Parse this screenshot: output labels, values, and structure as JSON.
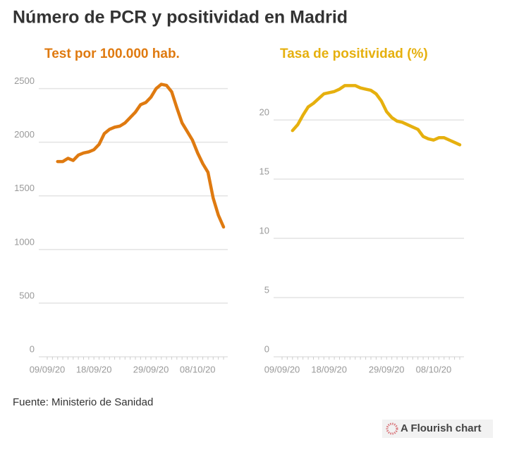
{
  "title": "Número de PCR y positividad en Madrid",
  "source": "Fuente: Ministerio de Sanidad",
  "credit": "A Flourish chart",
  "chart_data": [
    {
      "type": "line",
      "title": "Test por 100.000 hab.",
      "color": "#df7a10",
      "x": [
        "09/09/20",
        "10/09/20",
        "11/09/20",
        "12/09/20",
        "13/09/20",
        "14/09/20",
        "15/09/20",
        "16/09/20",
        "17/09/20",
        "18/09/20",
        "19/09/20",
        "20/09/20",
        "21/09/20",
        "22/09/20",
        "23/09/20",
        "24/09/20",
        "25/09/20",
        "26/09/20",
        "27/09/20",
        "28/09/20",
        "29/09/20",
        "30/09/20",
        "01/10/20",
        "02/10/20",
        "03/10/20",
        "04/10/20",
        "05/10/20",
        "06/10/20",
        "07/10/20",
        "08/10/20",
        "09/10/20",
        "10/10/20",
        "11/10/20",
        "12/10/20",
        "13/10/20"
      ],
      "values": [
        null,
        null,
        1820,
        1820,
        1850,
        1830,
        1880,
        1900,
        1910,
        1930,
        1980,
        2080,
        2120,
        2140,
        2150,
        2180,
        2230,
        2280,
        2350,
        2370,
        2420,
        2500,
        2540,
        2530,
        2470,
        2320,
        2180,
        2100,
        2020,
        1900,
        1800,
        1720,
        1480,
        1320,
        1210
      ],
      "xticks": [
        "09/09/20",
        "18/09/20",
        "29/09/20",
        "08/10/20"
      ],
      "ylim": [
        0,
        2550
      ],
      "yticks": [
        0,
        500,
        1000,
        1500,
        2000,
        2500
      ],
      "grid": true
    },
    {
      "type": "line",
      "title": "Tasa de positividad (%)",
      "color": "#e6b00e",
      "x": [
        "09/09/20",
        "10/09/20",
        "11/09/20",
        "12/09/20",
        "13/09/20",
        "14/09/20",
        "15/09/20",
        "16/09/20",
        "17/09/20",
        "18/09/20",
        "19/09/20",
        "20/09/20",
        "21/09/20",
        "22/09/20",
        "23/09/20",
        "24/09/20",
        "25/09/20",
        "26/09/20",
        "27/09/20",
        "28/09/20",
        "29/09/20",
        "30/09/20",
        "01/10/20",
        "02/10/20",
        "03/10/20",
        "04/10/20",
        "05/10/20",
        "06/10/20",
        "07/10/20",
        "08/10/20",
        "09/10/20",
        "10/10/20",
        "11/10/20",
        "12/10/20",
        "13/10/20"
      ],
      "values": [
        null,
        null,
        19.1,
        19.6,
        20.4,
        21.1,
        21.4,
        21.8,
        22.2,
        22.3,
        22.4,
        22.6,
        22.9,
        22.9,
        22.9,
        22.7,
        22.6,
        22.5,
        22.2,
        21.6,
        20.7,
        20.2,
        19.9,
        19.8,
        19.6,
        19.4,
        19.2,
        18.6,
        18.4,
        18.3,
        18.5,
        18.5,
        18.3,
        18.1,
        17.9
      ],
      "xticks": [
        "09/09/20",
        "18/09/20",
        "29/09/20",
        "08/10/20"
      ],
      "ylim": [
        0,
        23.1
      ],
      "yticks": [
        0,
        5,
        10,
        15,
        20
      ],
      "grid": true
    }
  ]
}
